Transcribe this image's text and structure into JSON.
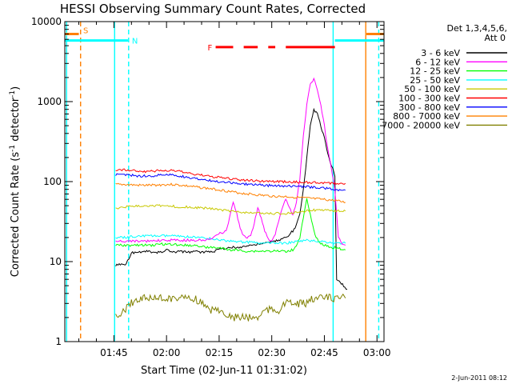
{
  "chart_data": {
    "type": "line",
    "title": "HESSI Observing Summary Count Rates, Corrected",
    "xlabel": "Start Time (02-Jun-11 01:31:02)",
    "ylabel_main": "Corrected Count Rate (s",
    "ylabel_sup1": "-1",
    "ylabel_mid": " detector",
    "ylabel_sup2": "-1",
    "ylabel_end": ")",
    "yscale": "log",
    "ylim": [
      1,
      10000
    ],
    "xlim_minutes": [
      91,
      182
    ],
    "x_ticks": [
      {
        "label": "01:45",
        "minute": 105
      },
      {
        "label": "02:00",
        "minute": 120
      },
      {
        "label": "02:15",
        "minute": 135
      },
      {
        "label": "02:30",
        "minute": 150
      },
      {
        "label": "02:45",
        "minute": 165
      },
      {
        "label": "03:00",
        "minute": 180
      }
    ],
    "y_ticks": [
      {
        "label": "1",
        "value": 1
      },
      {
        "label": "10",
        "value": 10
      },
      {
        "label": "100",
        "value": 100
      },
      {
        "label": "1000",
        "value": 1000
      },
      {
        "label": "10000",
        "value": 10000
      }
    ],
    "legend": {
      "header1": "Det 1,3,4,5,6,",
      "header2": "Att 0",
      "placement": "right",
      "entries": [
        {
          "label": "3 - 6 keV",
          "color": "#000000"
        },
        {
          "label": "6 - 12 keV",
          "color": "#ff00ff"
        },
        {
          "label": "12 - 25 keV",
          "color": "#00ff00"
        },
        {
          "label": "25 - 50 keV",
          "color": "#00ffff"
        },
        {
          "label": "50 - 100 keV",
          "color": "#c8c800"
        },
        {
          "label": "100 - 300 keV",
          "color": "#ff0000"
        },
        {
          "label": "300 - 800 keV",
          "color": "#0000ff"
        },
        {
          "label": "800 - 7000 keV",
          "color": "#ff8000"
        },
        {
          "label": "7000 - 20000 keV",
          "color": "#808000"
        }
      ]
    },
    "flags": [
      {
        "label": "S",
        "color": "#ff8000",
        "value": 7000,
        "segments": [
          [
            91,
            95
          ],
          [
            177,
            182
          ]
        ]
      },
      {
        "label": "N",
        "color": "#00ffff",
        "value": 5800,
        "segments": [
          [
            91,
            109
          ],
          [
            168,
            182
          ]
        ]
      },
      {
        "label": "F",
        "color": "#ff0000",
        "value": 4800,
        "segments": [
          [
            134,
            139
          ],
          [
            142,
            146
          ],
          [
            149,
            151
          ],
          [
            154,
            168
          ]
        ]
      }
    ],
    "vlines": [
      {
        "minute": 91.5,
        "color": "#00ffff",
        "style": "solid"
      },
      {
        "minute": 95.5,
        "color": "#ff8000",
        "style": "dashed"
      },
      {
        "minute": 105.2,
        "color": "#00ffff",
        "style": "solid"
      },
      {
        "minute": 109.2,
        "color": "#00ffff",
        "style": "dashed"
      },
      {
        "minute": 167.5,
        "color": "#00ffff",
        "style": "solid"
      },
      {
        "minute": 176.8,
        "color": "#ff8000",
        "style": "solid"
      },
      {
        "minute": 180.5,
        "color": "#00ffff",
        "style": "dashed"
      }
    ],
    "series": [
      {
        "name": "7000 - 20000 keV",
        "color": "#808000",
        "x": [
          105.5,
          108,
          110,
          112,
          114,
          116,
          118,
          120,
          122,
          124,
          126,
          128,
          130,
          132,
          134,
          136,
          138,
          140,
          142,
          144,
          146,
          148,
          150,
          152,
          154,
          156,
          158,
          160,
          162,
          164,
          166,
          168,
          169.5,
          170,
          171
        ],
        "y": [
          2.0,
          2.5,
          3.0,
          3.5,
          3.5,
          3.5,
          3.5,
          3.5,
          3.5,
          3.5,
          3.5,
          3.5,
          3.0,
          2.5,
          2.5,
          2.5,
          2.0,
          2.0,
          2.0,
          2.0,
          2.0,
          2.5,
          2.5,
          2.5,
          3.0,
          3.0,
          3.0,
          3.0,
          3.5,
          3.5,
          3.5,
          3.5,
          3.5,
          3.5,
          3.5
        ]
      },
      {
        "name": "3 - 6 keV",
        "color": "#000000",
        "x": [
          105.5,
          106.5,
          107.5,
          108.5,
          109.3,
          110,
          112,
          114,
          116,
          118,
          120,
          122,
          124,
          126,
          128,
          130,
          132,
          134,
          134.5,
          136,
          138,
          140,
          142,
          144,
          146,
          148,
          150,
          152,
          154,
          156,
          157,
          158,
          159,
          160,
          161,
          162,
          163,
          164,
          165,
          166,
          167,
          168,
          168.5,
          169.5,
          170.5,
          171.5
        ],
        "y": [
          9,
          9.5,
          9,
          9.5,
          11,
          13,
          13,
          13.5,
          13,
          13,
          14,
          13,
          13.5,
          13,
          13.5,
          13,
          13.5,
          13.5,
          14,
          14.5,
          15,
          15,
          15.5,
          16,
          16.5,
          17,
          17.5,
          18.5,
          20,
          24,
          28,
          40,
          80,
          200,
          500,
          800,
          700,
          500,
          350,
          220,
          160,
          120,
          6,
          5.5,
          5,
          4.5
        ]
      },
      {
        "name": "12 - 25 keV",
        "color": "#00ff00",
        "x": [
          105.5,
          108,
          110,
          112,
          114,
          116,
          118,
          120,
          122,
          124,
          126,
          128,
          130,
          132,
          134,
          136,
          138,
          140,
          142,
          144,
          146,
          148,
          150,
          152,
          154,
          156,
          157,
          158,
          159,
          160,
          161,
          162,
          163,
          164,
          165,
          166,
          167,
          168,
          169,
          170,
          171
        ],
        "y": [
          16,
          16,
          16,
          16,
          16,
          16,
          16.5,
          16.5,
          16.5,
          16,
          16,
          16,
          15.5,
          15,
          15,
          14.5,
          14,
          14,
          13.5,
          13.5,
          13.5,
          13.5,
          13.5,
          13.5,
          13.5,
          14,
          16,
          20,
          35,
          60,
          38,
          24,
          19,
          17,
          16,
          15.5,
          15,
          15,
          14.5,
          14.5,
          14
        ]
      },
      {
        "name": "25 - 50 keV",
        "color": "#00ffff",
        "x": [
          105.5,
          108,
          110,
          112,
          114,
          116,
          118,
          120,
          122,
          124,
          126,
          128,
          130,
          132,
          134,
          136,
          138,
          140,
          142,
          144,
          146,
          148,
          150,
          152,
          154,
          156,
          158,
          160,
          162,
          164,
          166,
          168,
          169,
          170,
          171
        ],
        "y": [
          20,
          20,
          20.5,
          21,
          21,
          21,
          21,
          21,
          21,
          20.5,
          20.5,
          20,
          20,
          19.5,
          19,
          18.5,
          18,
          18,
          17.5,
          17.5,
          17,
          17,
          17,
          17,
          17,
          17.5,
          18,
          18.5,
          18,
          18,
          17.5,
          17,
          17,
          17,
          17
        ]
      },
      {
        "name": "6 - 12 keV",
        "color": "#ff00ff",
        "x": [
          105.5,
          110,
          115,
          120,
          125,
          130,
          133,
          134.5,
          136,
          137,
          138,
          139,
          140,
          141,
          142,
          143,
          144,
          145,
          146,
          147,
          148,
          149,
          150,
          151,
          152,
          153,
          154,
          155,
          156,
          157,
          158,
          159,
          160,
          161,
          162,
          163,
          164,
          165,
          166,
          167,
          168,
          169,
          170,
          171
        ],
        "y": [
          18,
          18,
          18,
          18.5,
          18.5,
          18.5,
          19,
          22,
          23,
          24,
          36,
          55,
          40,
          26,
          21,
          20,
          21,
          30,
          48,
          35,
          24,
          19,
          18,
          22,
          32,
          48,
          62,
          48,
          38,
          55,
          110,
          380,
          900,
          1700,
          1900,
          1400,
          900,
          500,
          250,
          150,
          80,
          20,
          17,
          16
        ]
      },
      {
        "name": "50 - 100 keV",
        "color": "#c8c800",
        "x": [
          105.5,
          108,
          110,
          112,
          114,
          116,
          118,
          120,
          122,
          124,
          126,
          128,
          130,
          132,
          134,
          136,
          138,
          140,
          142,
          144,
          146,
          148,
          150,
          152,
          154,
          156,
          158,
          160,
          162,
          164,
          166,
          168,
          169,
          170,
          171
        ],
        "y": [
          46,
          48,
          49,
          50,
          50,
          50,
          50,
          49,
          49,
          48,
          48,
          47,
          47,
          46,
          45,
          44,
          43,
          42,
          41,
          41,
          40,
          40,
          40,
          40,
          40,
          41,
          42,
          43,
          44,
          44,
          44,
          43,
          43,
          43,
          43
        ]
      },
      {
        "name": "800 - 7000 keV",
        "color": "#ff8000",
        "x": [
          105.5,
          108,
          110,
          112,
          114,
          116,
          118,
          120,
          122,
          124,
          126,
          128,
          130,
          132,
          134,
          136,
          138,
          140,
          142,
          144,
          146,
          148,
          150,
          152,
          154,
          156,
          158,
          160,
          162,
          164,
          166,
          168,
          169,
          170,
          171
        ],
        "y": [
          92,
          92,
          91,
          90,
          90,
          90,
          91,
          92,
          92,
          90,
          88,
          86,
          84,
          82,
          80,
          78,
          75,
          73,
          71,
          70,
          68,
          67,
          66,
          65,
          65,
          64,
          63,
          62,
          61,
          60,
          59,
          58,
          57,
          56,
          55
        ]
      },
      {
        "name": "300 - 800 keV",
        "color": "#0000ff",
        "x": [
          105.5,
          108,
          110,
          112,
          114,
          116,
          118,
          120,
          122,
          124,
          126,
          128,
          130,
          132,
          134,
          136,
          138,
          140,
          142,
          144,
          146,
          148,
          150,
          152,
          154,
          156,
          158,
          160,
          162,
          164,
          166,
          168,
          169,
          170,
          171
        ],
        "y": [
          122,
          122,
          120,
          118,
          117,
          118,
          120,
          122,
          121,
          117,
          113,
          110,
          107,
          104,
          101,
          99,
          97,
          95,
          93,
          92,
          91,
          90,
          89,
          88,
          88,
          87,
          86,
          86,
          85,
          84,
          82,
          80,
          79,
          78,
          78
        ]
      },
      {
        "name": "100 - 300 keV",
        "color": "#ff0000",
        "x": [
          105.5,
          108,
          110,
          112,
          114,
          116,
          118,
          120,
          122,
          124,
          126,
          128,
          130,
          132,
          134,
          136,
          138,
          140,
          142,
          144,
          146,
          148,
          150,
          152,
          154,
          156,
          158,
          160,
          162,
          164,
          166,
          168,
          169,
          170,
          171
        ],
        "y": [
          140,
          140,
          138,
          135,
          134,
          135,
          137,
          138,
          137,
          133,
          128,
          124,
          120,
          117,
          114,
          111,
          108,
          106,
          104,
          103,
          102,
          101,
          100,
          100,
          100,
          99,
          98,
          98,
          97,
          96,
          96,
          95,
          95,
          95,
          95
        ]
      }
    ],
    "grid": false,
    "footer_date": "2-Jun-2011 08:12"
  }
}
